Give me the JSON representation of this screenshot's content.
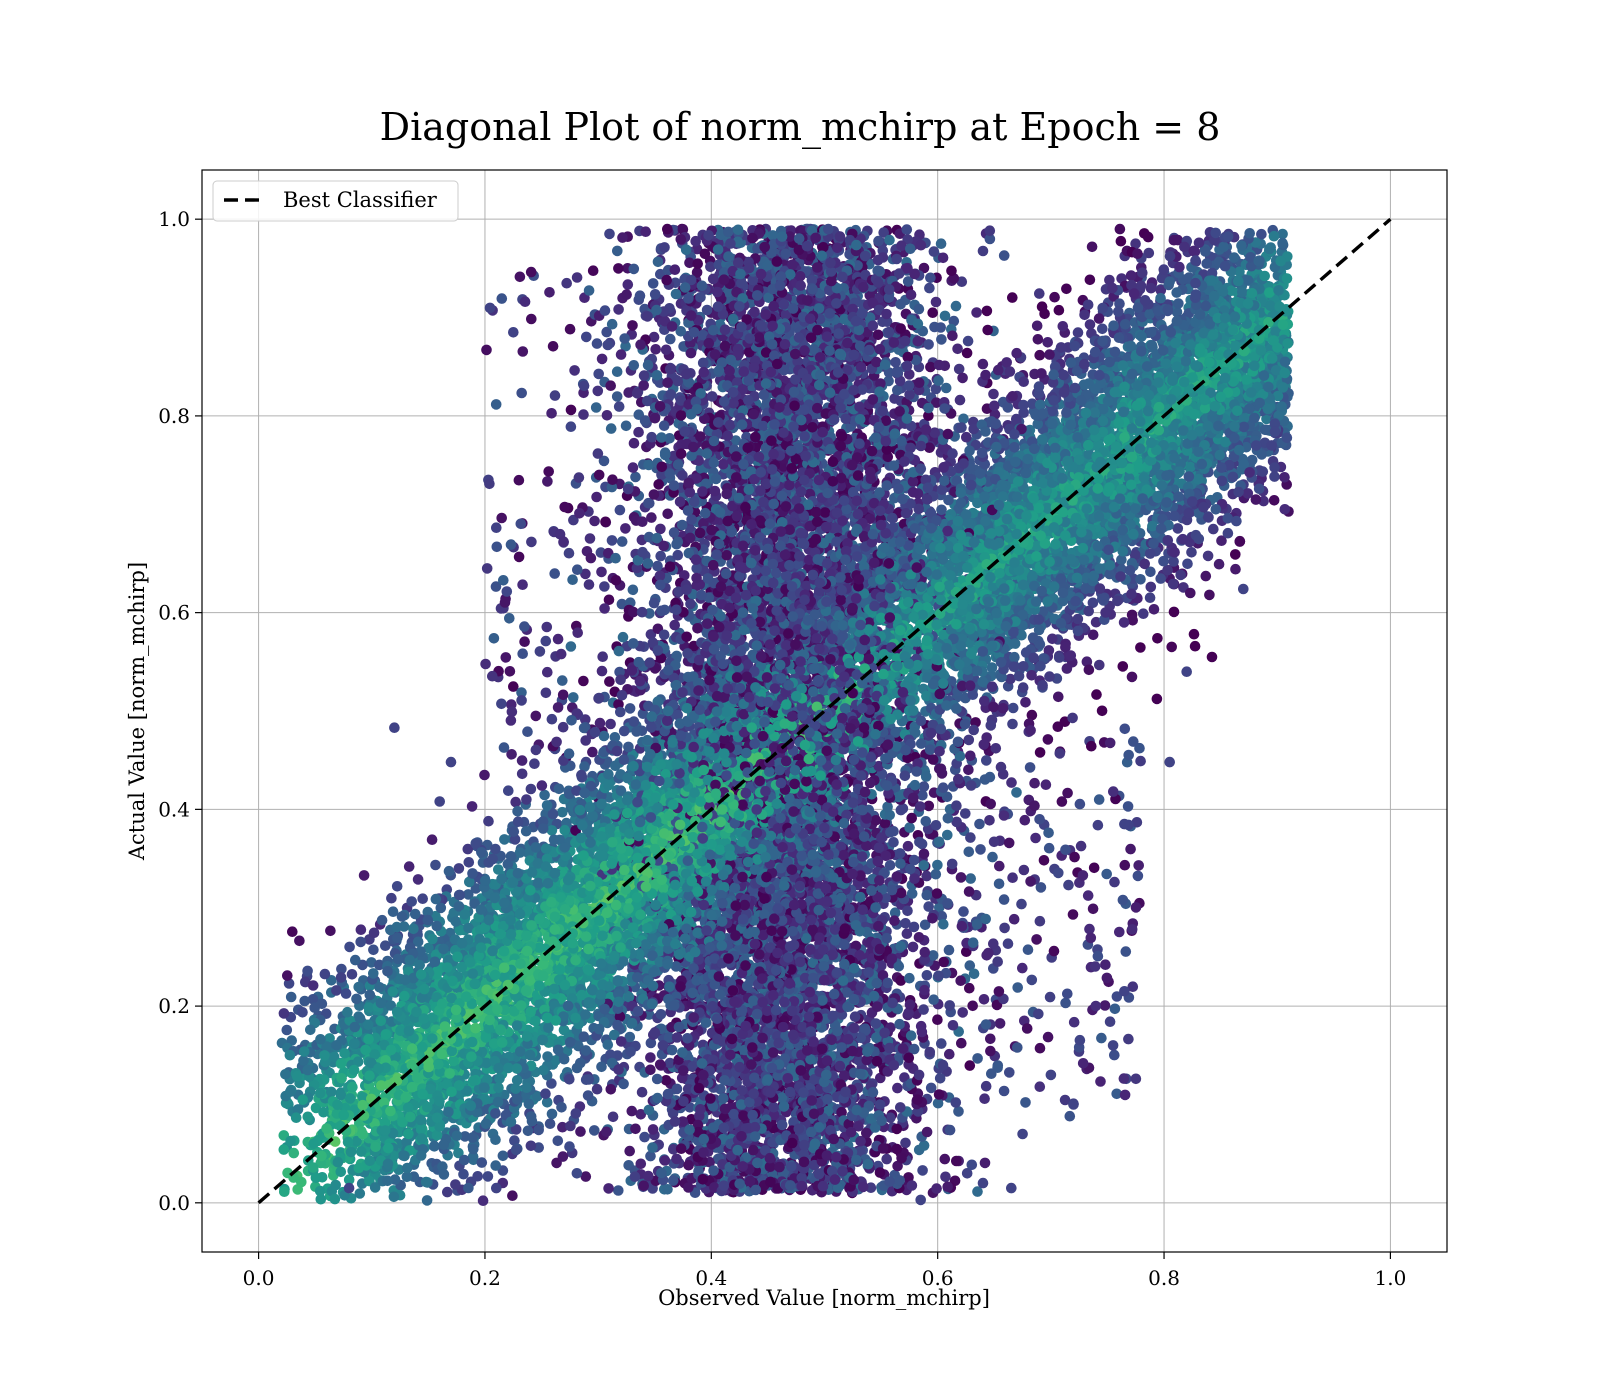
{
  "chart_data": {
    "type": "scatter",
    "title": "Diagonal Plot of norm_mchirp at Epoch = 8",
    "xlabel": "Observed Value [norm_mchirp]",
    "ylabel": "Actual Value [norm_mchirp]",
    "xlim": [
      -0.05,
      1.05
    ],
    "ylim": [
      -0.05,
      1.05
    ],
    "xticks": [
      0.0,
      0.2,
      0.4,
      0.6,
      0.8,
      1.0
    ],
    "yticks": [
      0.0,
      0.2,
      0.4,
      0.6,
      0.8,
      1.0
    ],
    "xtick_labels": [
      "0.0",
      "0.2",
      "0.4",
      "0.6",
      "0.8",
      "1.0"
    ],
    "ytick_labels": [
      "0.0",
      "0.2",
      "0.4",
      "0.6",
      "0.8",
      "1.0"
    ],
    "grid": true,
    "colormap": "viridis",
    "legend": {
      "position": "top-left",
      "entries": [
        {
          "label": "Best Classifier",
          "style": "dashed",
          "color": "#000000"
        }
      ]
    },
    "reference_line": {
      "name": "Best Classifier",
      "x": [
        0.0,
        1.0
      ],
      "y": [
        0.0,
        1.0
      ]
    },
    "point_clusters": [
      {
        "name": "lower-left diagonal band",
        "x_range": [
          0.06,
          0.45
        ],
        "y_range": [
          0.01,
          0.45
        ],
        "approx_count": 5500,
        "color_level": [
          0.35,
          0.75
        ]
      },
      {
        "name": "central vertical band",
        "x_range": [
          0.33,
          0.6
        ],
        "y_range": [
          0.01,
          0.99
        ],
        "approx_count": 9000,
        "color_level": [
          0.0,
          0.35
        ]
      },
      {
        "name": "upper-right diagonal band",
        "x_range": [
          0.55,
          0.91
        ],
        "y_range": [
          0.45,
          0.99
        ],
        "approx_count": 5500,
        "color_level": [
          0.25,
          0.65
        ]
      }
    ],
    "outliers": [
      {
        "x": 0.31,
        "y": 0.985
      },
      {
        "x": 0.225,
        "y": 0.885
      },
      {
        "x": 0.12,
        "y": 0.483
      },
      {
        "x": 0.585,
        "y": 0.003
      },
      {
        "x": 0.665,
        "y": 0.015
      },
      {
        "x": 0.64,
        "y": 0.02
      },
      {
        "x": 0.82,
        "y": 0.54
      },
      {
        "x": 0.805,
        "y": 0.448
      },
      {
        "x": 0.87,
        "y": 0.624
      },
      {
        "x": 0.755,
        "y": 0.16
      },
      {
        "x": 0.7,
        "y": 0.13
      },
      {
        "x": 0.72,
        "y": 0.1
      },
      {
        "x": 0.765,
        "y": 0.385
      },
      {
        "x": 0.765,
        "y": 0.215
      },
      {
        "x": 0.16,
        "y": 0.408
      },
      {
        "x": 0.17,
        "y": 0.448
      },
      {
        "x": 0.08,
        "y": 0.015
      },
      {
        "x": 0.21,
        "y": 0.015
      },
      {
        "x": 0.675,
        "y": 0.07
      },
      {
        "x": 0.895,
        "y": 0.77
      }
    ]
  }
}
